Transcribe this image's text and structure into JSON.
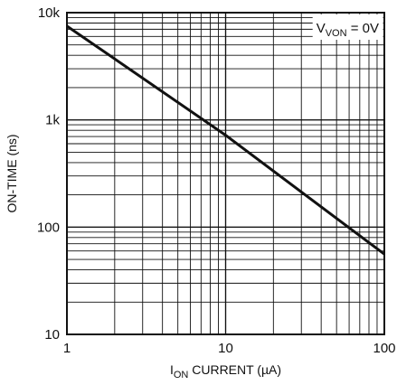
{
  "chart_data": {
    "type": "line",
    "title": "",
    "xlabel": {
      "main": "I",
      "sub": "ON",
      "rest": " CURRENT (µA)"
    },
    "ylabel": "ON-TIME (ns)",
    "x_scale": "log",
    "y_scale": "log",
    "xlim": [
      1,
      100
    ],
    "ylim": [
      10,
      10000
    ],
    "x_ticks": [
      {
        "value": 1,
        "label": "1"
      },
      {
        "value": 10,
        "label": "10"
      },
      {
        "value": 100,
        "label": "100"
      }
    ],
    "y_ticks": [
      {
        "value": 10,
        "label": "10"
      },
      {
        "value": 100,
        "label": "100"
      },
      {
        "value": 1000,
        "label": "1k"
      },
      {
        "value": 10000,
        "label": "10k"
      }
    ],
    "grid": true,
    "annotation": {
      "main": "V",
      "sub": "VON",
      "rest": " = 0V",
      "position": "top-right"
    },
    "series": [
      {
        "color": "#111111",
        "points": [
          {
            "x": 1,
            "y": 7500
          },
          {
            "x": 10,
            "y": 720
          },
          {
            "x": 100,
            "y": 56
          }
        ]
      }
    ]
  }
}
